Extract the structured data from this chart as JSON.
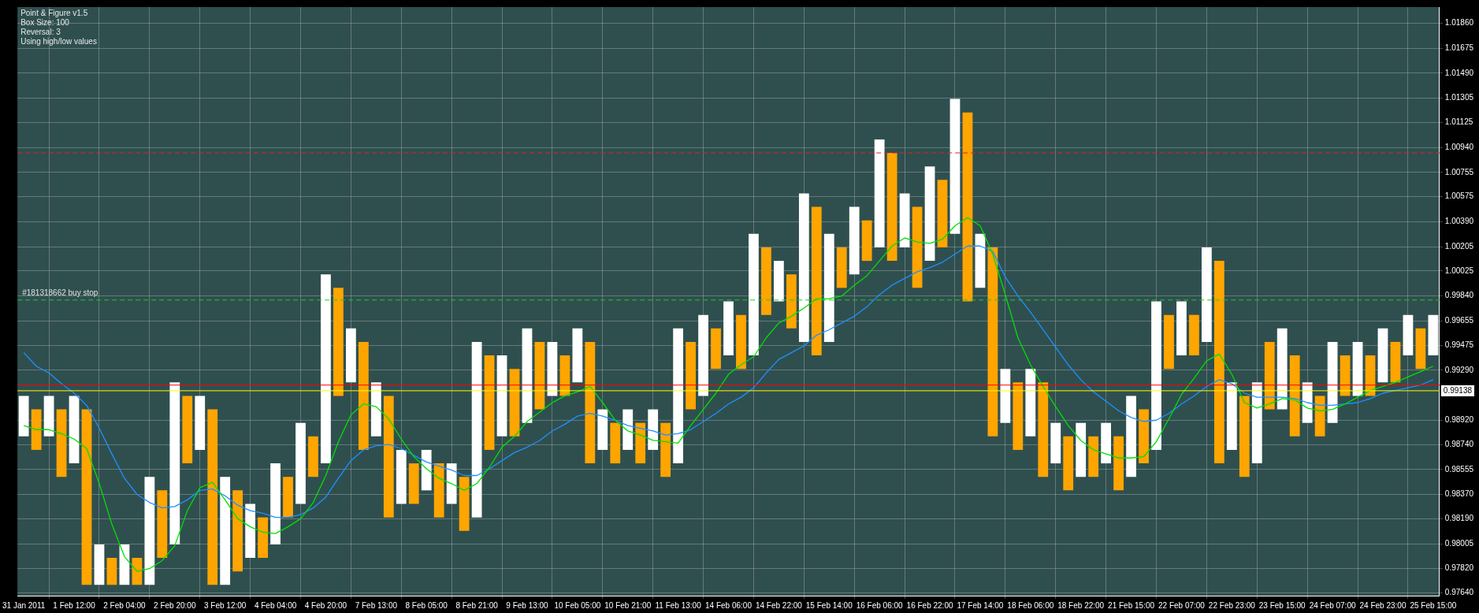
{
  "chart_data": {
    "type": "bar",
    "annotations": [
      "Point & Figure v1.5",
      "Box Size: 100",
      "Reversal: 3",
      "Using high/low values"
    ],
    "categories": [
      "31 Jan 2011",
      null,
      null,
      null,
      "1 Feb 12:00",
      null,
      null,
      null,
      "2 Feb 04:00",
      null,
      null,
      null,
      "2 Feb 20:00",
      null,
      null,
      null,
      "3 Feb 12:00",
      null,
      null,
      null,
      "4 Feb 04:00",
      null,
      null,
      null,
      "4 Feb 20:00",
      null,
      null,
      null,
      "7 Feb 13:00",
      null,
      null,
      null,
      "8 Feb 05:00",
      null,
      null,
      null,
      "8 Feb 21:00",
      null,
      null,
      null,
      "9 Feb 13:00",
      null,
      null,
      null,
      "10 Feb 05:00",
      null,
      null,
      null,
      "10 Feb 21:00",
      null,
      null,
      null,
      "11 Feb 13:00",
      null,
      null,
      null,
      "14 Feb 06:00",
      null,
      null,
      null,
      "14 Feb 22:00",
      null,
      null,
      null,
      "15 Feb 14:00",
      null,
      null,
      null,
      "16 Feb 06:00",
      null,
      null,
      null,
      "16 Feb 22:00",
      null,
      null,
      null,
      "17 Feb 14:00",
      null,
      null,
      null,
      "18 Feb 06:00",
      null,
      null,
      null,
      "18 Feb 22:00",
      null,
      null,
      null,
      "21 Feb 15:00",
      null,
      null,
      null,
      "22 Feb 07:00",
      null,
      null,
      null,
      "22 Feb 23:00",
      null,
      null,
      null,
      "23 Feb 15:00",
      null,
      null,
      null,
      "24 Feb 07:00",
      null,
      null,
      null,
      "24 Feb 23:00",
      null,
      null,
      null,
      "25 Feb 15:00"
    ],
    "series": [
      {
        "base": [
          0.988,
          0.987,
          0.988,
          0.985,
          0.986,
          0.977,
          0.977,
          0.977,
          0.977,
          0.977,
          0.977,
          0.979,
          0.98,
          0.986,
          0.987,
          0.977,
          0.977,
          0.978,
          0.979,
          0.979,
          0.98,
          0.982,
          0.983,
          0.985,
          0.986,
          0.991,
          0.992,
          0.987,
          0.988,
          0.982,
          0.983,
          0.983,
          0.984,
          0.982,
          0.983,
          0.981,
          0.982,
          0.987,
          0.988,
          0.988,
          0.989,
          0.99,
          0.991,
          0.991,
          0.992,
          0.986,
          0.987,
          0.986,
          0.987,
          0.986,
          0.987,
          0.985,
          0.986,
          0.99,
          0.991,
          0.993,
          0.994,
          0.993,
          0.994,
          0.997,
          0.998,
          0.996,
          0.995,
          0.994,
          0.995,
          0.999,
          1.0,
          1.001,
          1.002,
          1.001,
          1.002,
          0.999,
          1.001,
          1.002,
          1.003,
          0.998,
          0.999,
          0.988,
          0.989,
          0.987,
          0.988,
          0.985,
          0.986,
          0.984,
          0.985,
          0.985,
          0.986,
          0.984,
          0.985,
          0.986,
          0.987,
          0.993,
          0.994,
          0.994,
          0.995,
          0.986,
          0.987,
          0.985,
          0.986,
          0.99,
          0.99,
          0.988,
          0.989,
          0.988,
          0.989,
          0.991,
          0.991,
          0.991,
          0.992,
          0.992,
          0.994,
          0.993,
          0.994
        ],
        "values": [
          0.003,
          0.003,
          0.003,
          0.005,
          0.005,
          0.013,
          0.003,
          0.002,
          0.003,
          0.002,
          0.008,
          0.005,
          0.012,
          0.005,
          0.004,
          0.013,
          0.008,
          0.006,
          0.004,
          0.003,
          0.006,
          0.003,
          0.006,
          0.003,
          0.014,
          0.008,
          0.004,
          0.008,
          0.004,
          0.009,
          0.004,
          0.003,
          0.003,
          0.004,
          0.003,
          0.004,
          0.013,
          0.007,
          0.006,
          0.005,
          0.007,
          0.005,
          0.004,
          0.003,
          0.004,
          0.009,
          0.003,
          0.003,
          0.003,
          0.003,
          0.003,
          0.004,
          0.01,
          0.005,
          0.006,
          0.003,
          0.004,
          0.004,
          0.009,
          0.005,
          0.003,
          0.004,
          0.011,
          0.011,
          0.008,
          0.003,
          0.005,
          0.003,
          0.008,
          0.008,
          0.004,
          0.006,
          0.007,
          0.005,
          0.01,
          0.014,
          0.004,
          0.014,
          0.004,
          0.005,
          0.005,
          0.007,
          0.003,
          0.004,
          0.004,
          0.003,
          0.003,
          0.004,
          0.006,
          0.004,
          0.011,
          0.004,
          0.004,
          0.003,
          0.007,
          0.015,
          0.005,
          0.006,
          0.006,
          0.005,
          0.006,
          0.006,
          0.003,
          0.003,
          0.006,
          0.003,
          0.004,
          0.003,
          0.004,
          0.003,
          0.003,
          0.003,
          0.003
        ],
        "colors": [
          "#ffffff",
          "#ffa500",
          "#ffffff",
          "#ffa500",
          "#ffffff",
          "#ffa500",
          "#ffffff",
          "#ffa500",
          "#ffffff",
          "#ffa500",
          "#ffffff",
          "#ffa500",
          "#ffffff",
          "#ffa500",
          "#ffffff",
          "#ffa500",
          "#ffffff",
          "#ffa500",
          "#ffffff",
          "#ffa500",
          "#ffffff",
          "#ffa500",
          "#ffffff",
          "#ffa500",
          "#ffffff",
          "#ffa500",
          "#ffffff",
          "#ffa500",
          "#ffffff",
          "#ffa500",
          "#ffffff",
          "#ffa500",
          "#ffffff",
          "#ffa500",
          "#ffffff",
          "#ffa500",
          "#ffffff",
          "#ffa500",
          "#ffffff",
          "#ffa500",
          "#ffffff",
          "#ffa500",
          "#ffffff",
          "#ffa500",
          "#ffffff",
          "#ffa500",
          "#ffffff",
          "#ffa500",
          "#ffffff",
          "#ffa500",
          "#ffffff",
          "#ffa500",
          "#ffffff",
          "#ffa500",
          "#ffffff",
          "#ffa500",
          "#ffffff",
          "#ffa500",
          "#ffffff",
          "#ffa500",
          "#ffffff",
          "#ffa500",
          "#ffffff",
          "#ffa500",
          "#ffffff",
          "#ffa500",
          "#ffffff",
          "#ffa500",
          "#ffffff",
          "#ffa500",
          "#ffffff",
          "#ffa500",
          "#ffffff",
          "#ffa500",
          "#ffffff",
          "#ffa500",
          "#ffffff",
          "#ffa500",
          "#ffffff",
          "#ffa500",
          "#ffffff",
          "#ffa500",
          "#ffffff",
          "#ffa500",
          "#ffffff",
          "#ffa500",
          "#ffffff",
          "#ffa500",
          "#ffffff",
          "#ffa500",
          "#ffffff",
          "#ffa500",
          "#ffffff",
          "#ffa500",
          "#ffffff",
          "#ffa500",
          "#ffffff",
          "#ffa500",
          "#ffffff",
          "#ffa500",
          "#ffffff",
          "#ffa500",
          "#ffffff",
          "#ffa500",
          "#ffffff",
          "#ffa500",
          "#ffffff",
          "#ffa500",
          "#ffffff",
          "#ffa500",
          "#ffffff",
          "#ffa500",
          "#ffffff"
        ]
      },
      {
        "type": "line",
        "color": "#00e000",
        "values": [
          0.9888,
          0.9885,
          0.9885,
          0.9882,
          0.9878,
          0.9871,
          0.9845,
          0.9815,
          0.9791,
          0.978,
          0.9782,
          0.9788,
          0.9799,
          0.9825,
          0.9842,
          0.9846,
          0.9833,
          0.9819,
          0.9813,
          0.9809,
          0.9808,
          0.9813,
          0.9819,
          0.9831,
          0.9851,
          0.9876,
          0.9896,
          0.9904,
          0.9902,
          0.9893,
          0.9878,
          0.9865,
          0.9856,
          0.9849,
          0.9845,
          0.984,
          0.9845,
          0.9857,
          0.9872,
          0.988,
          0.9891,
          0.9898,
          0.9905,
          0.991,
          0.9913,
          0.9917,
          0.9905,
          0.9892,
          0.9884,
          0.9881,
          0.9877,
          0.9876,
          0.9875,
          0.9888,
          0.99,
          0.9912,
          0.9926,
          0.9933,
          0.9939,
          0.9953,
          0.9964,
          0.9969,
          0.9975,
          0.9982,
          0.9982,
          0.9984,
          0.9992,
          0.9999,
          1.001,
          1.0021,
          1.0027,
          1.0024,
          1.0023,
          1.0026,
          1.0036,
          1.0042,
          1.0036,
          1.0015,
          0.9985,
          0.9953,
          0.9933,
          0.9917,
          0.9902,
          0.9888,
          0.9877,
          0.987,
          0.9867,
          0.9864,
          0.9864,
          0.9865,
          0.9876,
          0.9893,
          0.9911,
          0.9923,
          0.9936,
          0.9941,
          0.9926,
          0.9905,
          0.9901,
          0.9904,
          0.9908,
          0.9907,
          0.9901,
          0.9899,
          0.99,
          0.9904,
          0.9909,
          0.9914,
          0.9917,
          0.992,
          0.9924,
          0.9928,
          0.9932
        ]
      },
      {
        "type": "line",
        "color": "#1e90ff",
        "values": [
          0.9942,
          0.9932,
          0.9927,
          0.9919,
          0.9912,
          0.9903,
          0.9886,
          0.9867,
          0.9849,
          0.9837,
          0.9831,
          0.9827,
          0.9828,
          0.9833,
          0.984,
          0.9841,
          0.9836,
          0.9829,
          0.9825,
          0.9823,
          0.982,
          0.982,
          0.9822,
          0.9827,
          0.9835,
          0.9849,
          0.9862,
          0.987,
          0.9873,
          0.9874,
          0.9871,
          0.9866,
          0.9861,
          0.9858,
          0.9855,
          0.9851,
          0.9851,
          0.9856,
          0.9862,
          0.9868,
          0.9872,
          0.9877,
          0.9884,
          0.9889,
          0.9895,
          0.9897,
          0.9895,
          0.9892,
          0.9888,
          0.9886,
          0.9884,
          0.9881,
          0.9882,
          0.9885,
          0.9891,
          0.9897,
          0.9904,
          0.9909,
          0.9916,
          0.9927,
          0.9937,
          0.9942,
          0.9947,
          0.9955,
          0.9959,
          0.9964,
          0.9969,
          0.9976,
          0.9985,
          0.9992,
          0.9997,
          1.0002,
          1.0005,
          1.0009,
          1.0015,
          1.0021,
          1.0021,
          1.0017,
          0.9998,
          0.9984,
          0.9972,
          0.9959,
          0.9946,
          0.9933,
          0.9922,
          0.9913,
          0.9906,
          0.9899,
          0.9894,
          0.9891,
          0.9892,
          0.9897,
          0.9904,
          0.991,
          0.9917,
          0.9922,
          0.9919,
          0.9912,
          0.9909,
          0.9909,
          0.9909,
          0.9908,
          0.9905,
          0.9903,
          0.9903,
          0.9904,
          0.9905,
          0.9908,
          0.9912,
          0.9914,
          0.9916,
          0.9918,
          0.9922
        ]
      }
    ],
    "ylim": [
      0.9762,
      1.0198
    ],
    "yticks": [
      {
        "value": 1.0186,
        "label": "1.01860"
      },
      {
        "value": 1.01675,
        "label": "1.01675"
      },
      {
        "value": 1.0149,
        "label": "1.01490"
      },
      {
        "value": 1.01305,
        "label": "1.01305"
      },
      {
        "value": 1.01125,
        "label": "1.01125"
      },
      {
        "value": 1.0094,
        "label": "1.00940"
      },
      {
        "value": 1.00755,
        "label": "1.00755"
      },
      {
        "value": 1.00575,
        "label": "1.00575"
      },
      {
        "value": 1.0039,
        "label": "1.00390"
      },
      {
        "value": 1.00205,
        "label": "1.00205"
      },
      {
        "value": 1.00025,
        "label": "1.00025"
      },
      {
        "value": 0.9984,
        "label": "0.99840"
      },
      {
        "value": 0.99655,
        "label": "0.99655"
      },
      {
        "value": 0.99475,
        "label": "0.99475"
      },
      {
        "value": 0.9929,
        "label": "0.99290"
      },
      {
        "value": 0.9892,
        "label": "0.98920"
      },
      {
        "value": 0.9874,
        "label": "0.98740"
      },
      {
        "value": 0.98555,
        "label": "0.98555"
      },
      {
        "value": 0.9837,
        "label": "0.98370"
      },
      {
        "value": 0.9819,
        "label": "0.98190"
      },
      {
        "value": 0.98005,
        "label": "0.98005"
      },
      {
        "value": 0.9782,
        "label": "0.97820"
      },
      {
        "value": 0.9764,
        "label": "0.97640"
      }
    ],
    "grid": true,
    "ref_lines": [
      {
        "axis": "y",
        "value": 0.9981,
        "label": "#181318662 buy stop",
        "color": "#22cc22",
        "line_style": "dashed"
      },
      {
        "axis": "y",
        "value": 1.009,
        "color": "#dd2222",
        "line_style": "dashed"
      },
      {
        "axis": "y",
        "value": 0.9918,
        "color": "#ff0000",
        "line_style": "solid"
      },
      {
        "axis": "y",
        "value": 0.99138,
        "label": "0.99138",
        "color": "#ffff00",
        "line_style": "solid"
      }
    ]
  }
}
